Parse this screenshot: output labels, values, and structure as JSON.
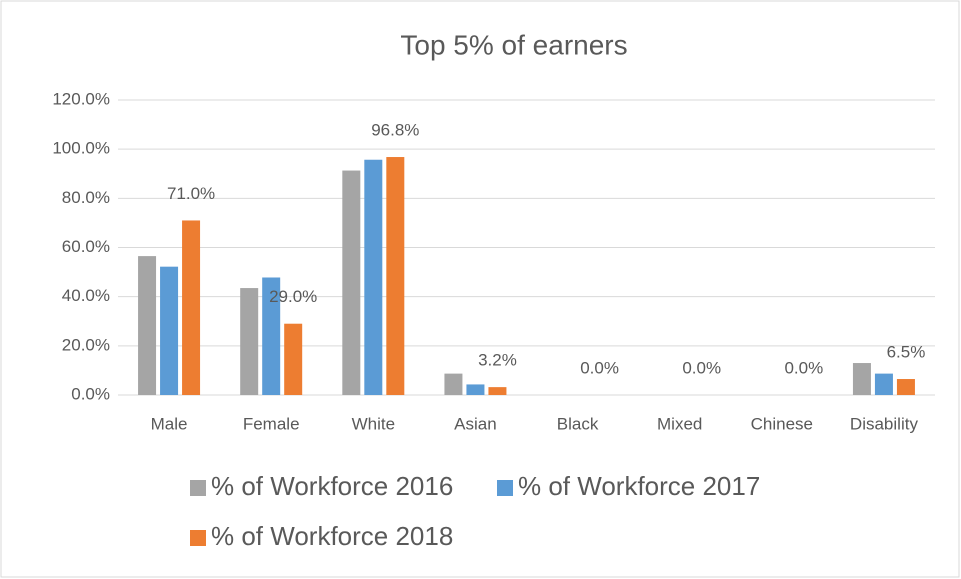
{
  "chart_data": {
    "type": "bar",
    "title": "Top 5% of earners",
    "categories": [
      "Male",
      "Female",
      "White",
      "Asian",
      "Black",
      "Mixed",
      "Chinese",
      "Disability"
    ],
    "series": [
      {
        "name": "% of Workforce 2016",
        "color": "#a5a5a5",
        "values": [
          56.5,
          43.5,
          91.3,
          8.7,
          0,
          0,
          0,
          13.0
        ]
      },
      {
        "name": "% of Workforce 2017",
        "color": "#5b9bd5",
        "values": [
          52.2,
          47.8,
          95.7,
          4.3,
          0,
          0,
          0,
          8.7
        ]
      },
      {
        "name": "% of Workforce 2018",
        "color": "#ed7d31",
        "values": [
          71.0,
          29.0,
          96.8,
          3.2,
          0.0,
          0.0,
          0.0,
          6.5
        ],
        "value_labels": [
          "71.0%",
          "29.0%",
          "96.8%",
          "3.2%",
          "0.0%",
          "0.0%",
          "0.0%",
          "6.5%"
        ]
      }
    ],
    "ylim": [
      0,
      120
    ],
    "yticks": [
      {
        "value": 0,
        "label": "0.0%"
      },
      {
        "value": 20,
        "label": "20.0%"
      },
      {
        "value": 40,
        "label": "40.0%"
      },
      {
        "value": 60,
        "label": "60.0%"
      },
      {
        "value": 80,
        "label": "80.0%"
      },
      {
        "value": 100,
        "label": "100.0%"
      },
      {
        "value": 120,
        "label": "120.0%"
      }
    ],
    "grid": true,
    "legend": "bottom"
  }
}
